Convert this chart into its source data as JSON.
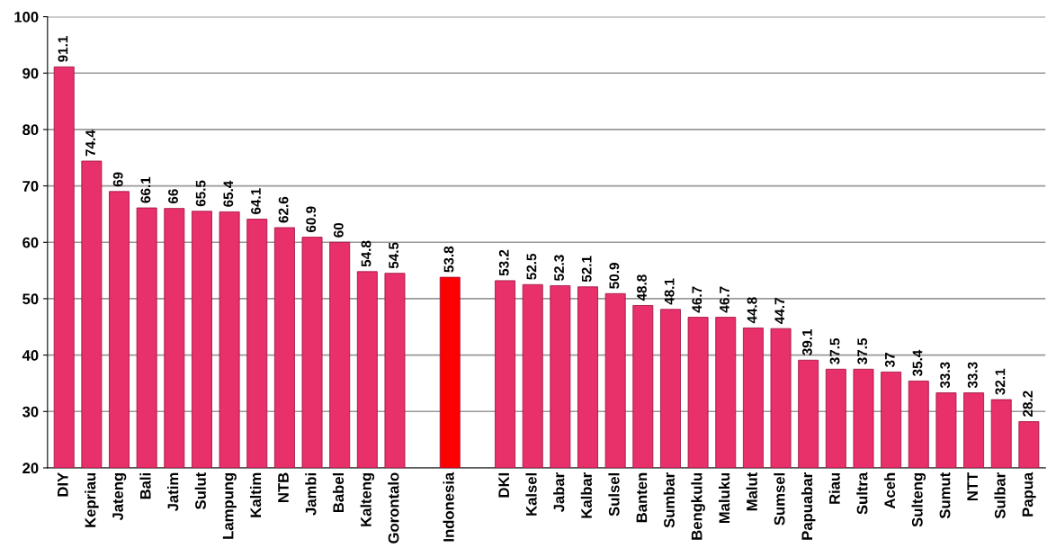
{
  "chart_data": {
    "type": "bar",
    "categories": [
      "DIY",
      "Kepriau",
      "Jateng",
      "Bali",
      "Jatim",
      "Sulut",
      "Lampung",
      "Kaltim",
      "NTB",
      "Jambi",
      "Babel",
      "Kalteng",
      "Gorontalo",
      null,
      "Indonesia",
      null,
      "DKI",
      "Kalsel",
      "Jabar",
      "Kalbar",
      "Sulsel",
      "Banten",
      "Sumbar",
      "Bengkulu",
      "Maluku",
      "Malut",
      "Sumsel",
      "Papuabar",
      "Riau",
      "Sultra",
      "Aceh",
      "Sulteng",
      "Sumut",
      "NTT",
      "Sulbar",
      "Papua"
    ],
    "values": [
      91.1,
      74.4,
      69,
      66.1,
      66,
      65.5,
      65.4,
      64.1,
      62.6,
      60.9,
      60,
      54.8,
      54.5,
      null,
      53.8,
      null,
      53.2,
      52.5,
      52.3,
      52.1,
      50.9,
      48.8,
      48.1,
      46.7,
      46.7,
      44.8,
      44.7,
      39.1,
      37.5,
      37.5,
      37,
      35.4,
      33.3,
      33.3,
      32.1,
      28.2
    ],
    "colors": [
      "#e8306a",
      "#e8306a",
      "#e8306a",
      "#e8306a",
      "#e8306a",
      "#e8306a",
      "#e8306a",
      "#e8306a",
      "#e8306a",
      "#e8306a",
      "#e8306a",
      "#e8306a",
      "#e8306a",
      null,
      "#ff0000",
      null,
      "#e8306a",
      "#e8306a",
      "#e8306a",
      "#e8306a",
      "#e8306a",
      "#e8306a",
      "#e8306a",
      "#e8306a",
      "#e8306a",
      "#e8306a",
      "#e8306a",
      "#e8306a",
      "#e8306a",
      "#e8306a",
      "#e8306a",
      "#e8306a",
      "#e8306a",
      "#e8306a",
      "#e8306a",
      "#e8306a"
    ],
    "ylim": [
      20,
      100
    ],
    "yticks": [
      20,
      30,
      40,
      50,
      60,
      70,
      80,
      90,
      100
    ],
    "grid": "y",
    "data_labels": true
  }
}
